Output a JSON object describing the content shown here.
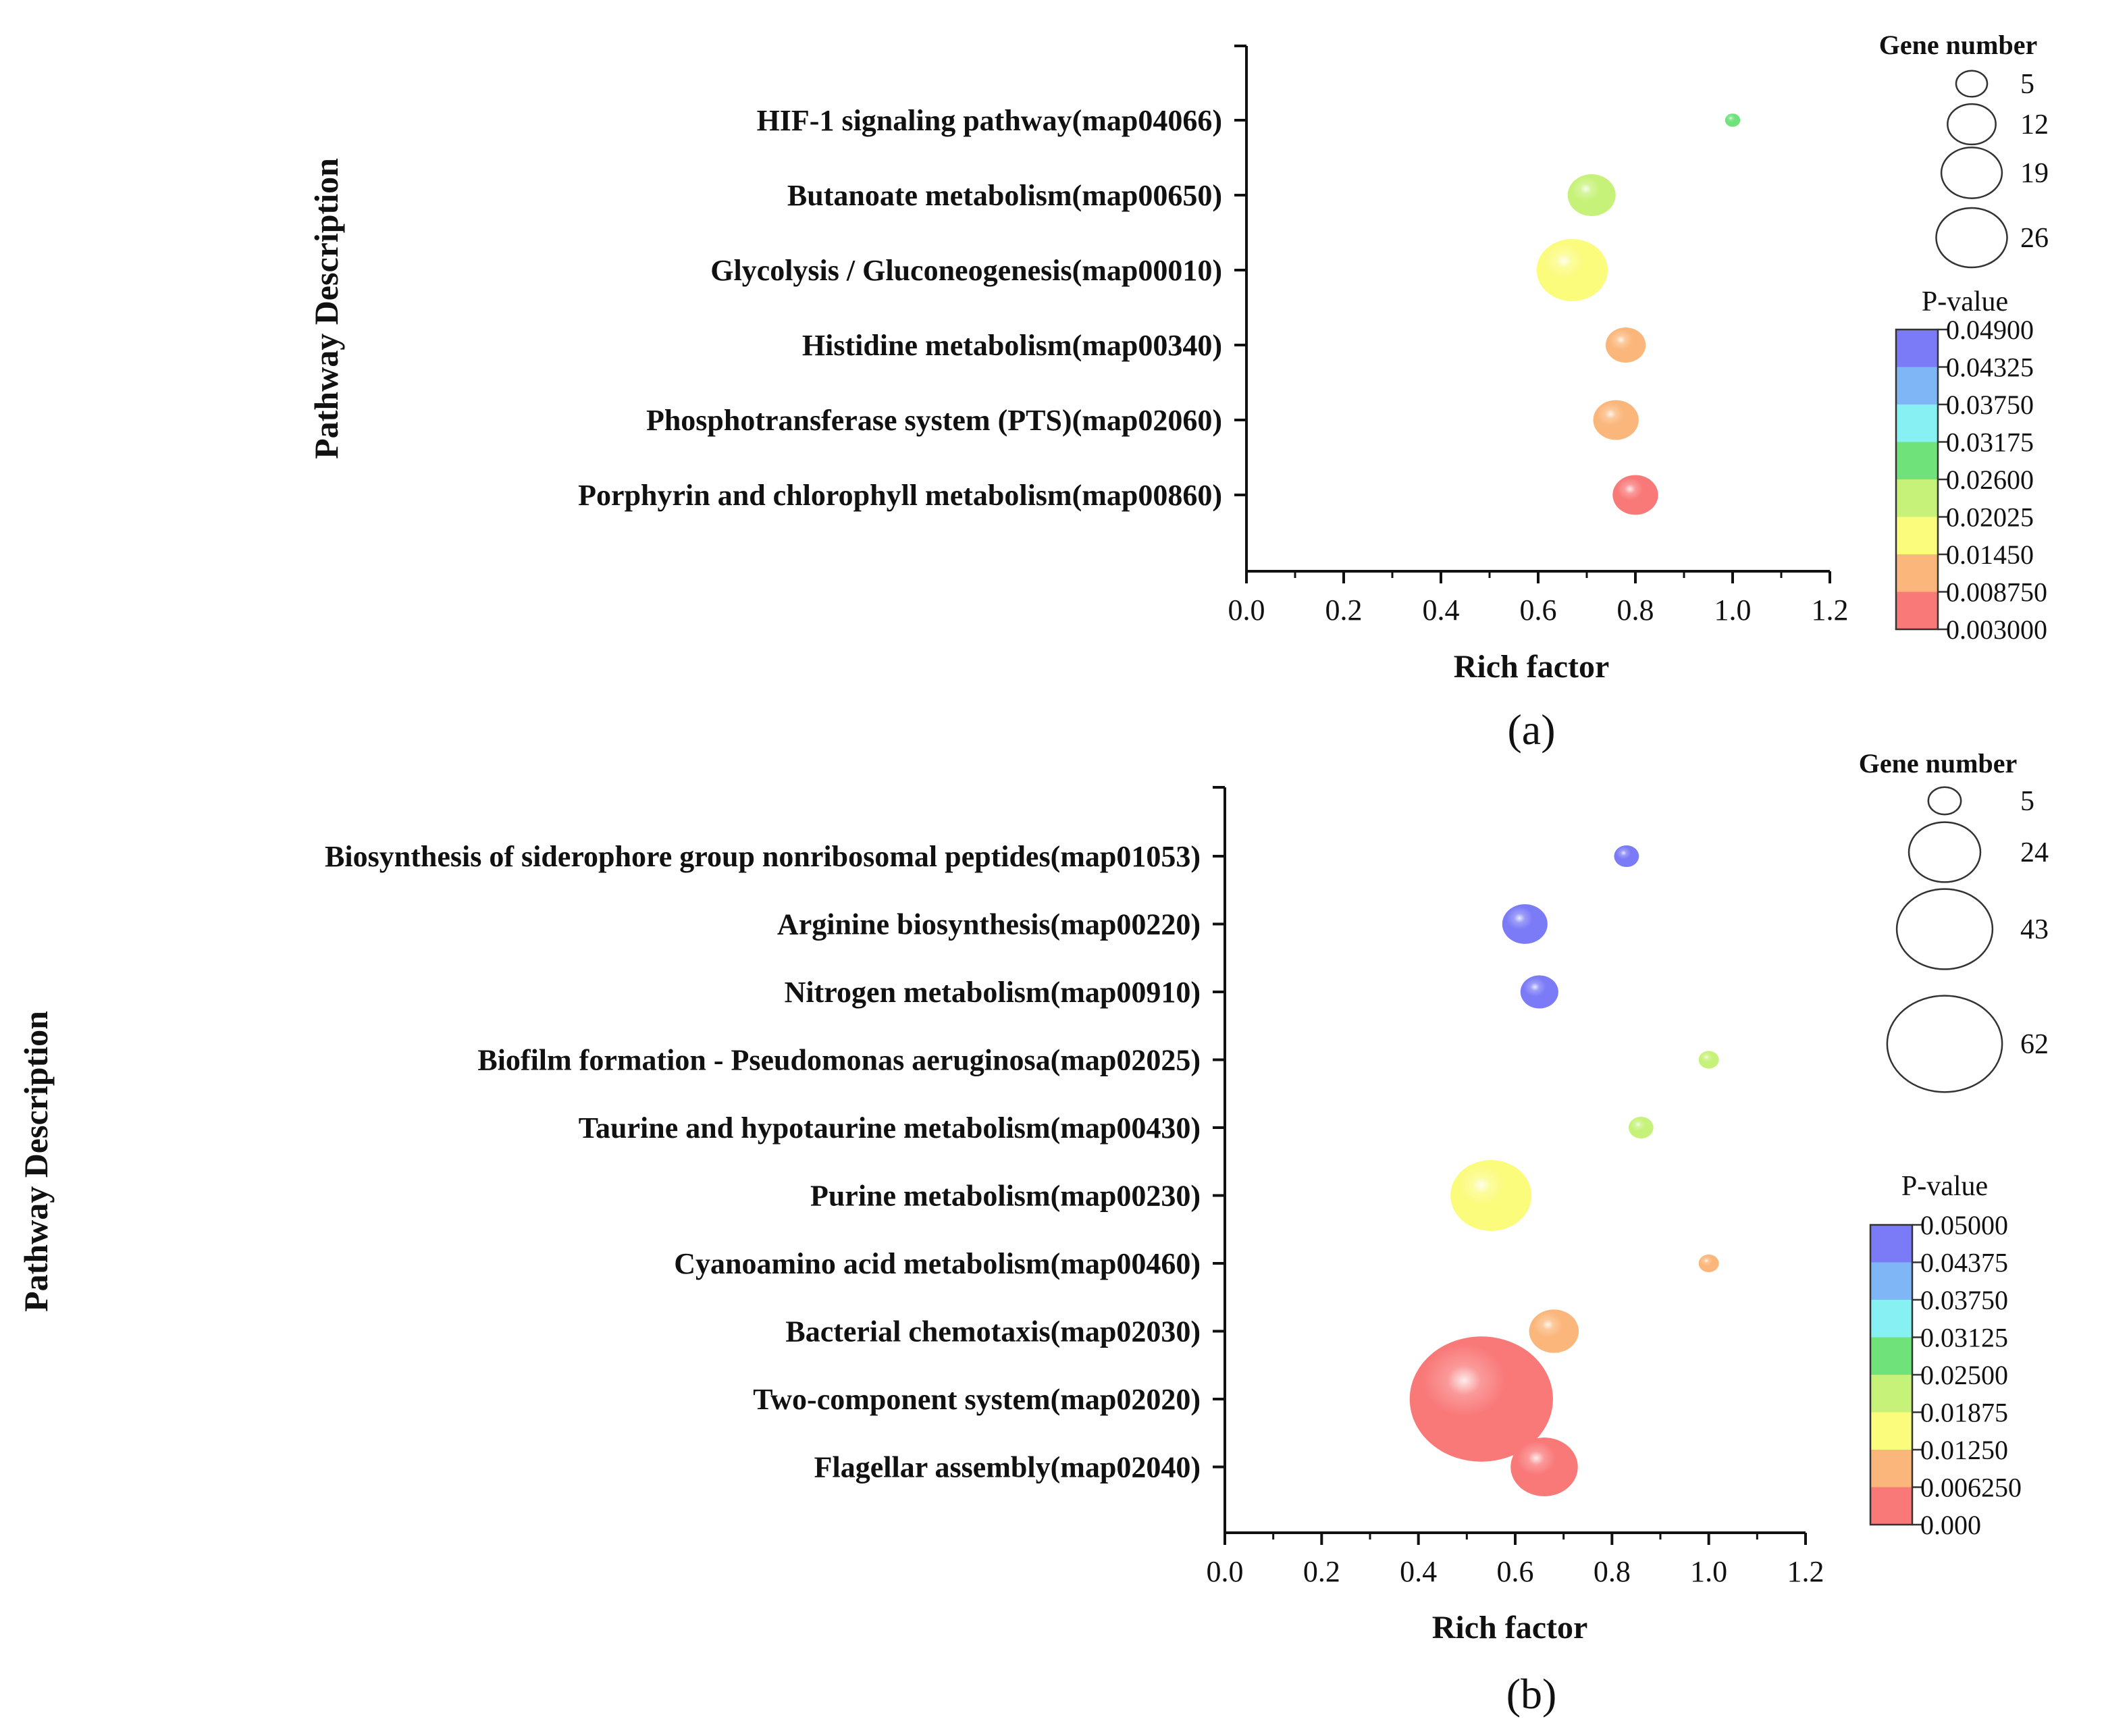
{
  "chart_data": [
    {
      "type": "scatter",
      "panel_label": "(a)",
      "xlabel": "Rich factor",
      "ylabel": "Pathway Description",
      "xlim": [
        0.0,
        1.2
      ],
      "xticks": [
        "0.0",
        "0.2",
        "0.4",
        "0.6",
        "0.8",
        "1.0",
        "1.2"
      ],
      "size_legend": {
        "title": "Gene number",
        "values": [
          5,
          12,
          19,
          26
        ]
      },
      "color_legend": {
        "title": "P-value",
        "ticks": [
          "0.04900",
          "0.04325",
          "0.03750",
          "0.03175",
          "0.02600",
          "0.02025",
          "0.01450",
          "0.008750",
          "0.003000"
        ],
        "colors": [
          "#7b7bf7",
          "#7fb6f5",
          "#86f0f2",
          "#6fe27a",
          "#c7f27a",
          "#fbfb7c",
          "#fbb77b",
          "#f97878"
        ]
      },
      "points": [
        {
          "pathway": "HIF-1 signaling pathway(map04066)",
          "rich_factor": 1.0,
          "gene_number": 1,
          "p_value": 0.027
        },
        {
          "pathway": "Butanoate metabolism(map00650)",
          "rich_factor": 0.71,
          "gene_number": 10,
          "p_value": 0.022
        },
        {
          "pathway": "Glycolysis / Gluconeogenesis(map00010)",
          "rich_factor": 0.67,
          "gene_number": 22,
          "p_value": 0.015
        },
        {
          "pathway": "Histidine metabolism(map00340)",
          "rich_factor": 0.78,
          "gene_number": 7,
          "p_value": 0.01
        },
        {
          "pathway": "Phosphotransferase system (PTS)(map02060)",
          "rich_factor": 0.76,
          "gene_number": 9,
          "p_value": 0.009
        },
        {
          "pathway": "Porphyrin and chlorophyll metabolism(map00860)",
          "rich_factor": 0.8,
          "gene_number": 9,
          "p_value": 0.004
        }
      ]
    },
    {
      "type": "scatter",
      "panel_label": "(b)",
      "xlabel": "Rich factor",
      "ylabel": "Pathway Description",
      "xlim": [
        0.0,
        1.2
      ],
      "xticks": [
        "0.0",
        "0.2",
        "0.4",
        "0.6",
        "0.8",
        "1.0",
        "1.2"
      ],
      "size_legend": {
        "title": "Gene number",
        "values": [
          5,
          24,
          43,
          62
        ]
      },
      "color_legend": {
        "title": "P-value",
        "ticks": [
          "0.05000",
          "0.04375",
          "0.03750",
          "0.03125",
          "0.02500",
          "0.01875",
          "0.01250",
          "0.006250",
          "0.000"
        ],
        "colors": [
          "#7b7bf7",
          "#7fb6f5",
          "#86f0f2",
          "#6fe27a",
          "#c7f27a",
          "#fbfb7c",
          "#fbb77b",
          "#f97878"
        ]
      },
      "points": [
        {
          "pathway": "Biosynthesis of siderophore group nonribosomal peptides(map01053)",
          "rich_factor": 0.83,
          "gene_number": 3,
          "p_value": 0.048
        },
        {
          "pathway": "Arginine biosynthesis(map00220)",
          "rich_factor": 0.62,
          "gene_number": 10,
          "p_value": 0.047
        },
        {
          "pathway": "Nitrogen metabolism(map00910)",
          "rich_factor": 0.65,
          "gene_number": 7,
          "p_value": 0.047
        },
        {
          "pathway": "Biofilm formation - Pseudomonas aeruginosa(map02025)",
          "rich_factor": 1.0,
          "gene_number": 2,
          "p_value": 0.024
        },
        {
          "pathway": "Taurine and hypotaurine metabolism(map00430)",
          "rich_factor": 0.86,
          "gene_number": 3,
          "p_value": 0.022
        },
        {
          "pathway": "Purine metabolism(map00230)",
          "rich_factor": 0.55,
          "gene_number": 32,
          "p_value": 0.016
        },
        {
          "pathway": "Cyanoamino acid metabolism(map00460)",
          "rich_factor": 1.0,
          "gene_number": 2,
          "p_value": 0.011
        },
        {
          "pathway": "Bacterial chemotaxis(map02030)",
          "rich_factor": 0.68,
          "gene_number": 12,
          "p_value": 0.009
        },
        {
          "pathway": "Two-component system(map02020)",
          "rich_factor": 0.53,
          "gene_number": 100,
          "p_value": 0.001
        },
        {
          "pathway": "Flagellar assembly(map02040)",
          "rich_factor": 0.66,
          "gene_number": 22,
          "p_value": 0.002
        }
      ]
    }
  ]
}
